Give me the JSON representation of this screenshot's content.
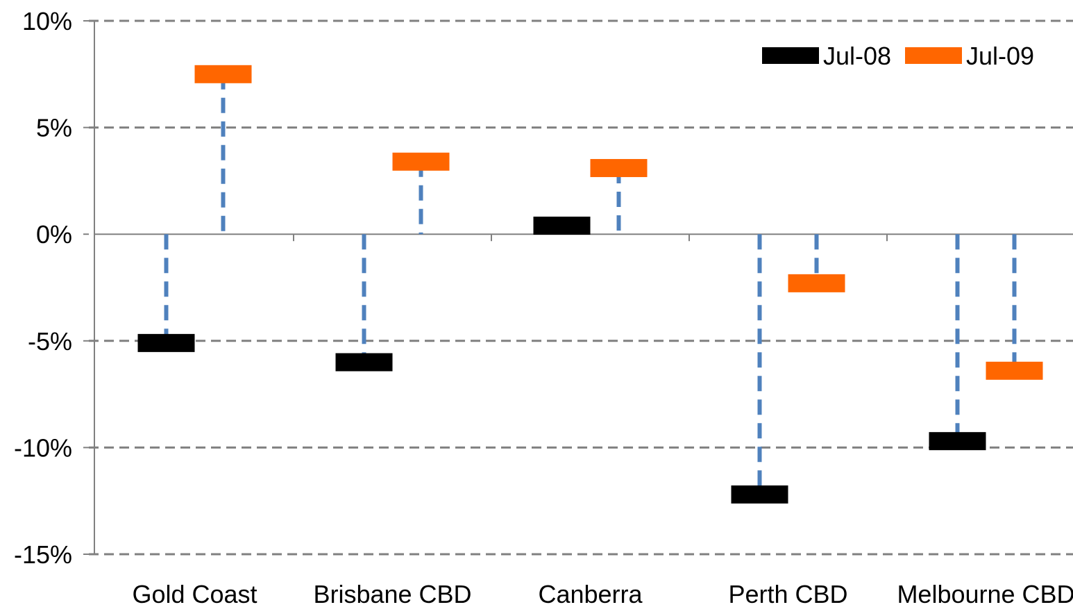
{
  "chart_data": {
    "type": "bar",
    "style": "floating markers with dashed drop lines to zero",
    "categories": [
      "Gold Coast",
      "Brisbane CBD",
      "Canberra",
      "Perth CBD",
      "Melbourne CBD"
    ],
    "series": [
      {
        "name": "Jul-08",
        "color": "#000000",
        "values": [
          -5.1,
          -6.0,
          0.4,
          -12.2,
          -9.7
        ]
      },
      {
        "name": "Jul-09",
        "color": "#FF6600",
        "values": [
          7.5,
          3.4,
          3.1,
          -2.3,
          -6.4
        ]
      }
    ],
    "drop_line_color": "#4F81BD",
    "y_ticks": [
      "10%",
      "5%",
      "0%",
      "-5%",
      "-10%",
      "-15%"
    ],
    "y_tick_values": [
      10,
      5,
      0,
      -5,
      -10,
      -15
    ],
    "ylim": [
      -15,
      10
    ],
    "grid": true,
    "legend_position": "top-right",
    "title": "",
    "xlabel": "",
    "ylabel": ""
  }
}
